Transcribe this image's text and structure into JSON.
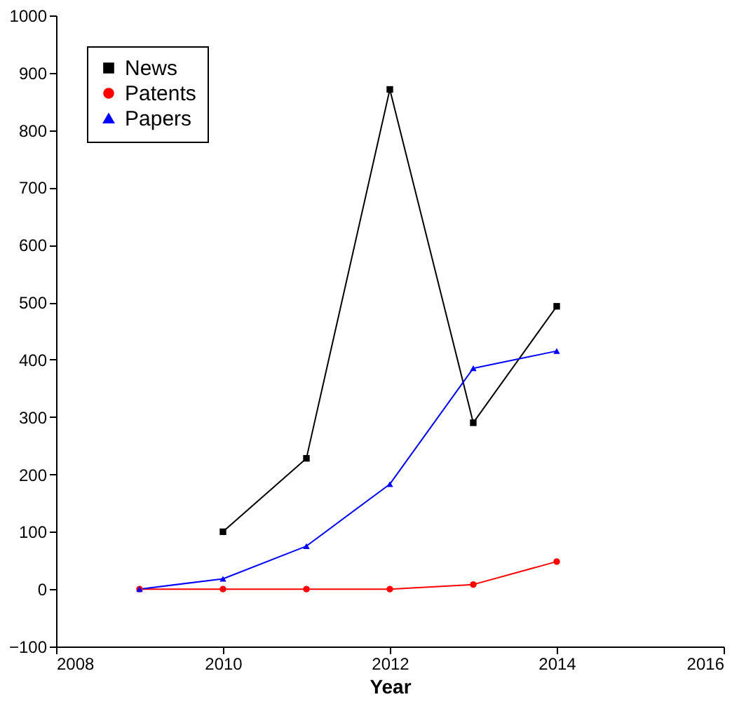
{
  "chart_data": {
    "type": "line",
    "xlabel": "Year",
    "x": [
      2009,
      2010,
      2011,
      2012,
      2013,
      2014
    ],
    "xlim": [
      2008,
      2016
    ],
    "xticks": [
      2008,
      2010,
      2012,
      2014,
      2016
    ],
    "ylim": [
      -100,
      1000
    ],
    "yticks": [
      -100,
      0,
      100,
      200,
      300,
      400,
      500,
      600,
      700,
      800,
      900,
      1000
    ],
    "grid": false,
    "legend": "top left",
    "line_style": "solid",
    "series": [
      {
        "name": "News",
        "color": "#000000",
        "marker": "square",
        "values": [
          null,
          100,
          228,
          871,
          290,
          493
        ]
      },
      {
        "name": "Patents",
        "color": "#ff0000",
        "marker": "circle",
        "values": [
          0,
          0,
          0,
          0,
          8,
          48
        ]
      },
      {
        "name": "Papers",
        "color": "#0000ff",
        "marker": "triangle",
        "values": [
          0,
          18,
          75,
          183,
          385,
          415
        ]
      }
    ]
  }
}
